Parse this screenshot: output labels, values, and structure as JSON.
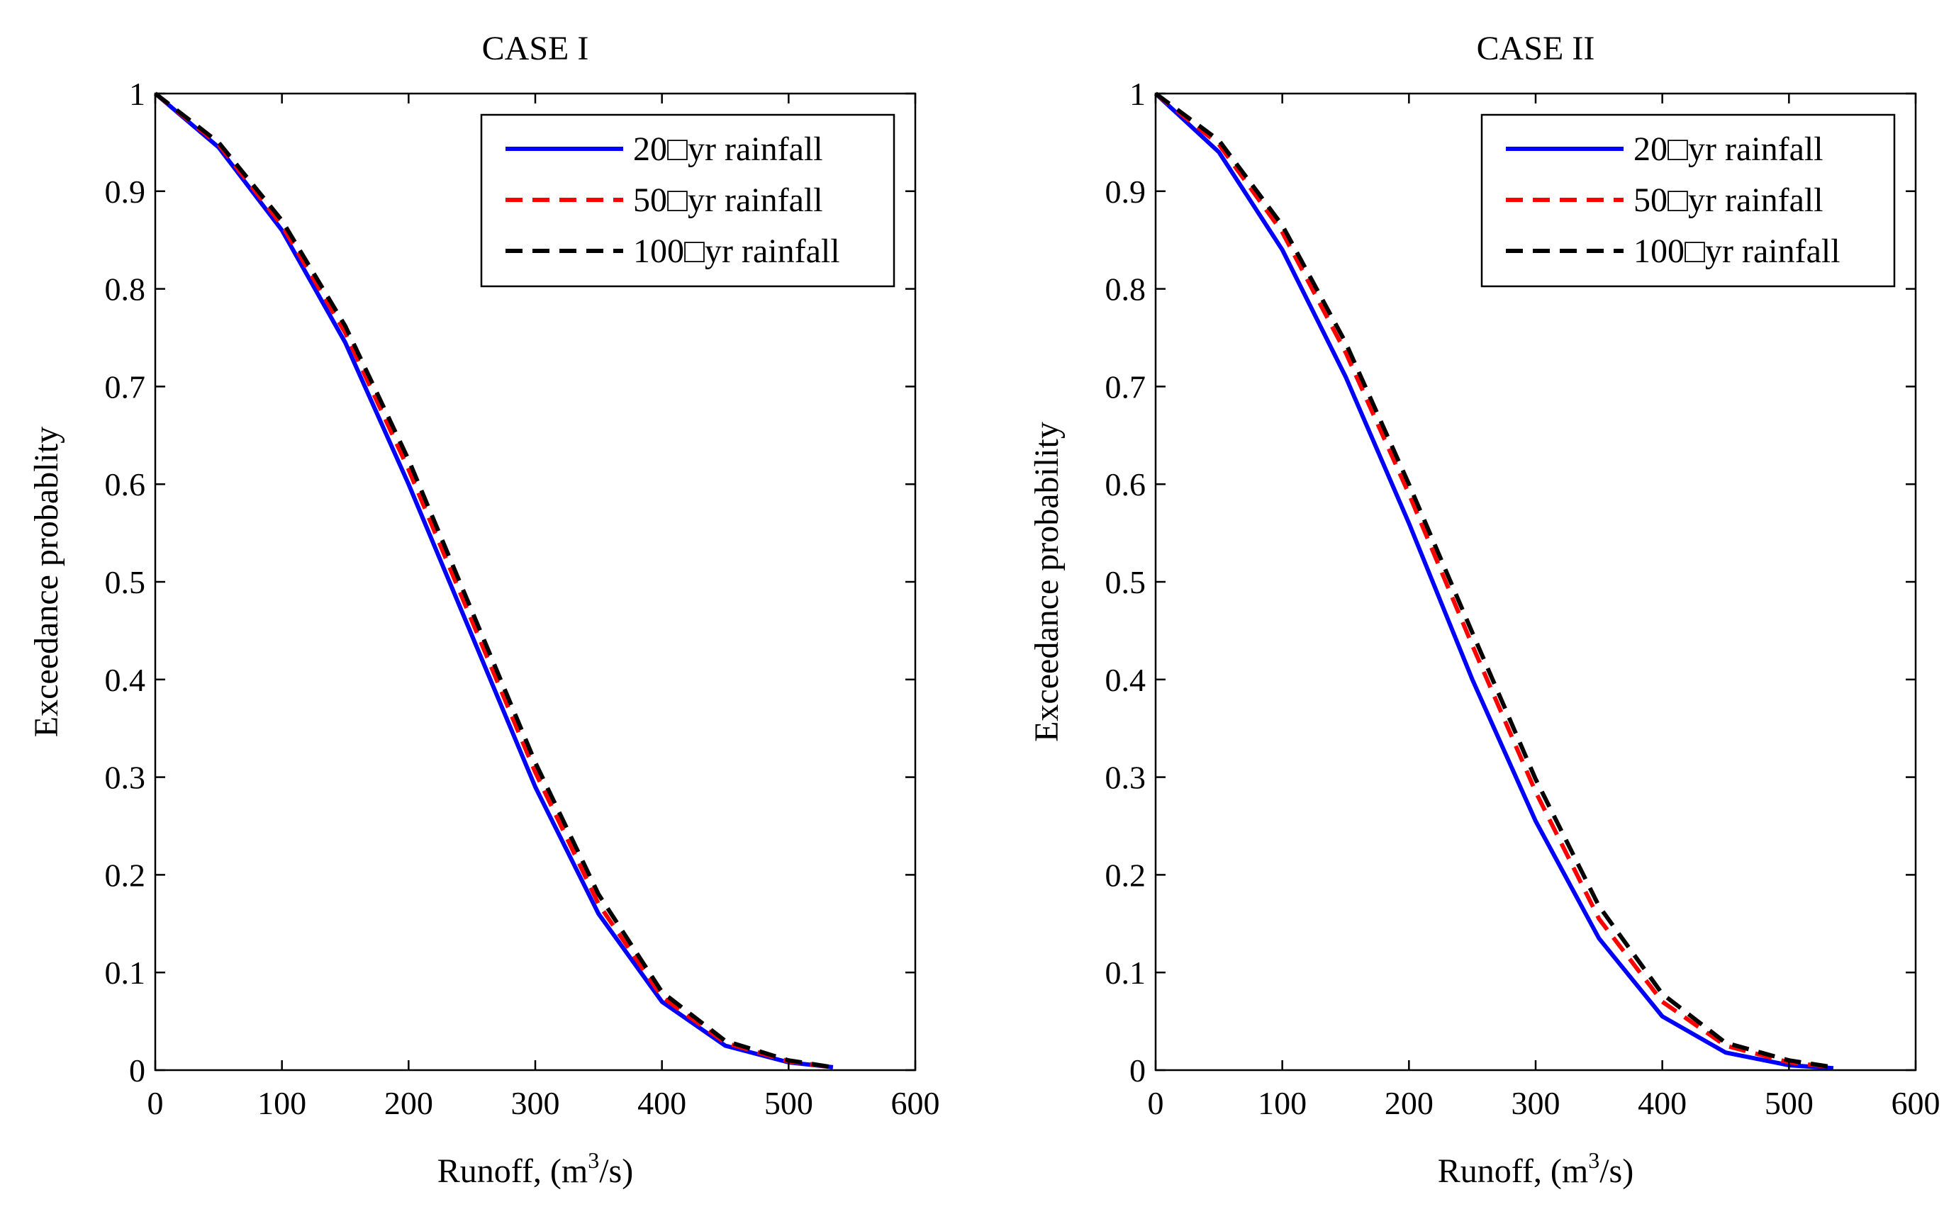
{
  "chart_data": [
    {
      "type": "line",
      "title": "CASE I",
      "xlabel": "Runoff, (m",
      "xlabel_sup": "3",
      "xlabel_tail": "/s)",
      "ylabel": "Exceedance probablity",
      "xlim": [
        0,
        600
      ],
      "ylim": [
        0,
        1
      ],
      "xticks": [
        "0",
        "100",
        "200",
        "300",
        "400",
        "500",
        "600"
      ],
      "yticks": [
        "0",
        "0.1",
        "0.2",
        "0.3",
        "0.4",
        "0.5",
        "0.6",
        "0.7",
        "0.8",
        "0.9",
        "1"
      ],
      "grid": false,
      "legend_position": "top-right",
      "x": [
        0,
        50,
        100,
        150,
        200,
        250,
        300,
        350,
        400,
        450,
        500,
        535
      ],
      "series": [
        {
          "name": "20□yr rainfall",
          "color": "#0000ff",
          "style": "solid",
          "values": [
            1.0,
            0.945,
            0.86,
            0.745,
            0.6,
            0.445,
            0.29,
            0.16,
            0.07,
            0.025,
            0.008,
            0.003
          ]
        },
        {
          "name": "50□yr rainfall",
          "color": "#ff0000",
          "style": "dashed",
          "values": [
            1.0,
            0.948,
            0.865,
            0.755,
            0.615,
            0.46,
            0.305,
            0.17,
            0.075,
            0.028,
            0.009,
            0.003
          ]
        },
        {
          "name": "100□yr rainfall",
          "color": "#000000",
          "style": "dashed",
          "values": [
            1.0,
            0.95,
            0.87,
            0.762,
            0.625,
            0.47,
            0.315,
            0.18,
            0.08,
            0.03,
            0.01,
            0.003
          ]
        }
      ]
    },
    {
      "type": "line",
      "title": "CASE II",
      "xlabel": "Runoff, (m",
      "xlabel_sup": "3",
      "xlabel_tail": "/s)",
      "ylabel": "Exceedance probability",
      "xlim": [
        0,
        600
      ],
      "ylim": [
        0,
        1
      ],
      "xticks": [
        "0",
        "100",
        "200",
        "300",
        "400",
        "500",
        "600"
      ],
      "yticks": [
        "0",
        "0.1",
        "0.2",
        "0.3",
        "0.4",
        "0.5",
        "0.6",
        "0.7",
        "0.8",
        "0.9",
        "1"
      ],
      "grid": false,
      "legend_position": "top-right",
      "x": [
        0,
        50,
        100,
        150,
        200,
        250,
        300,
        350,
        400,
        450,
        500,
        535
      ],
      "series": [
        {
          "name": "20□yr rainfall",
          "color": "#0000ff",
          "style": "solid",
          "values": [
            1.0,
            0.94,
            0.84,
            0.71,
            0.56,
            0.4,
            0.255,
            0.135,
            0.055,
            0.018,
            0.005,
            0.002
          ]
        },
        {
          "name": "50□yr rainfall",
          "color": "#ff0000",
          "style": "dashed",
          "values": [
            1.0,
            0.948,
            0.858,
            0.735,
            0.59,
            0.435,
            0.285,
            0.155,
            0.07,
            0.025,
            0.008,
            0.003
          ]
        },
        {
          "name": "100□yr rainfall",
          "color": "#000000",
          "style": "dashed",
          "values": [
            1.0,
            0.952,
            0.865,
            0.745,
            0.6,
            0.448,
            0.298,
            0.168,
            0.078,
            0.028,
            0.01,
            0.003
          ]
        }
      ]
    }
  ]
}
